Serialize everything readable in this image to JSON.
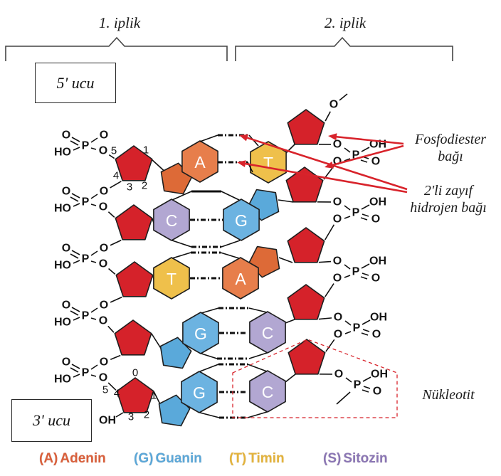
{
  "figure": {
    "strands": [
      {
        "label": "1. iplik"
      },
      {
        "label": "2. iplik"
      }
    ],
    "ends": {
      "five_prime": "5' ucu",
      "three_prime": "3' ucu"
    },
    "annotations": {
      "phosphodiester": {
        "lines": [
          "Fosfodiester",
          "bağı"
        ]
      },
      "hydrogen": {
        "lines": [
          "2'li zayıf",
          "hidrojen bağı"
        ]
      },
      "nucleotide": "Nükleotit"
    },
    "chem": {
      "P": "P",
      "O": "O",
      "OH": "OH",
      "HO": "HO"
    },
    "sugar_numbering": {
      "first": [
        "5",
        "1",
        "4",
        "3",
        "2"
      ],
      "last": [
        "0",
        "5",
        "4",
        "1",
        "3",
        "2"
      ],
      "last_oh": "OH",
      "top_terminal": "O"
    },
    "base_pairs": [
      {
        "left": "A",
        "right": "T",
        "hydrogen_bonds": 2
      },
      {
        "left": "C",
        "right": "G",
        "hydrogen_bonds": 3
      },
      {
        "left": "T",
        "right": "A",
        "hydrogen_bonds": 2
      },
      {
        "left": "G",
        "right": "C",
        "hydrogen_bonds": 3
      },
      {
        "left": "G",
        "right": "C",
        "hydrogen_bonds": 3
      }
    ],
    "base_colors": {
      "A": "#e77e4b",
      "A_ring2": "#dd6a37",
      "T": "#efc04b",
      "G": "#6cb3e1",
      "G_ring2": "#5aa9da",
      "C": "#b2a7d2"
    },
    "colors": {
      "sugar": "#d5222a",
      "outline": "#1f1f1f",
      "bond": "#111111",
      "annotation_red": "#d8232b",
      "brace": "#444444"
    },
    "legend": [
      {
        "symbol": "(A)",
        "name": "Adenin",
        "color": "#d95f3b"
      },
      {
        "symbol": "(G)",
        "name": "Guanin",
        "color": "#5ba7d8"
      },
      {
        "symbol": "(T)",
        "name": "Timin",
        "color": "#e3b33c"
      },
      {
        "symbol": "(S)",
        "name": "Sitozin",
        "color": "#8a76b4"
      }
    ]
  }
}
